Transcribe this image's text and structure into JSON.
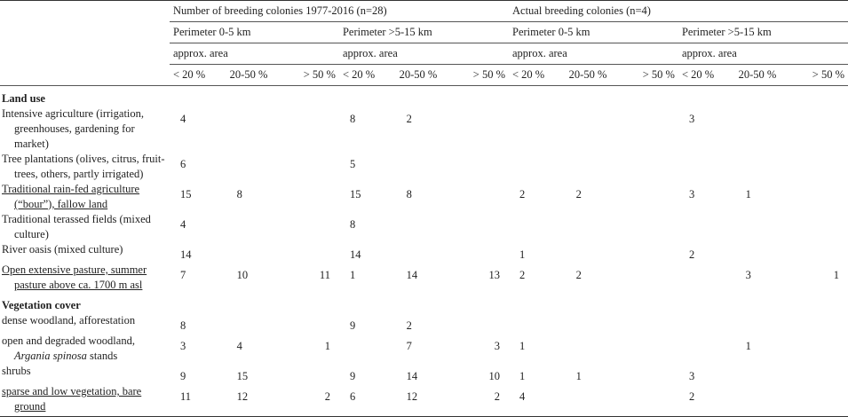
{
  "header": {
    "groups": [
      "Number of breeding colonies 1977-2016 (n=28)",
      "Actual breeding colonies (n=4)"
    ],
    "perimeters": [
      "Perimeter 0-5 km",
      "Perimeter >5-15 km",
      "Perimeter 0-5 km",
      "Perimeter >5-15 km"
    ],
    "area": [
      "approx. area",
      "approx. area",
      "approx. area",
      "approx. area"
    ],
    "subcols": [
      "< 20 %",
      "20-50 %",
      "> 50 %",
      "< 20 %",
      "20-50 %",
      "> 50 %",
      "< 20 %",
      "20-50 %",
      "> 50 %",
      "< 20 %",
      "20-50 %",
      "> 50 %"
    ]
  },
  "sections": [
    {
      "title": "Land use",
      "rows": [
        {
          "label": "Intensive agriculture (irrigation, greenhouses, gardening for market)",
          "cells": [
            4,
            null,
            null,
            8,
            2,
            null,
            null,
            null,
            null,
            3,
            null,
            null
          ]
        },
        {
          "label": "Tree plantations (olives, citrus, fruit-trees, others, partly irrigated)",
          "cells": [
            6,
            null,
            null,
            5,
            null,
            null,
            null,
            null,
            null,
            null,
            null,
            null
          ]
        },
        {
          "label": "Traditional rain-fed agriculture (“bour”), fallow land",
          "underlined": true,
          "cells": [
            15,
            8,
            null,
            15,
            8,
            null,
            2,
            2,
            null,
            3,
            1,
            null
          ]
        },
        {
          "label": "Traditional terassed fields (mixed culture)",
          "cells": [
            4,
            null,
            null,
            8,
            null,
            null,
            null,
            null,
            null,
            null,
            null,
            null
          ]
        },
        {
          "label": "River oasis (mixed culture)",
          "cells": [
            14,
            null,
            null,
            14,
            null,
            null,
            1,
            null,
            null,
            2,
            null,
            null
          ]
        },
        {
          "label": "Open extensive pasture, summer pasture above ca. 1700 m asl",
          "underlined": true,
          "cells": [
            7,
            10,
            11,
            1,
            14,
            13,
            2,
            2,
            null,
            null,
            3,
            1
          ]
        }
      ]
    },
    {
      "title": "Vegetation cover",
      "rows": [
        {
          "label": "dense woodland, afforestation",
          "cells": [
            8,
            null,
            null,
            9,
            2,
            null,
            null,
            null,
            null,
            null,
            null,
            null
          ]
        },
        {
          "label": "open and degraded woodland,",
          "label_italic": "Argania spinosa",
          "label_end": "stands",
          "cells": [
            3,
            4,
            1,
            null,
            7,
            3,
            1,
            null,
            null,
            null,
            1,
            null
          ]
        },
        {
          "label": "shrubs",
          "cells": [
            9,
            15,
            null,
            9,
            14,
            10,
            1,
            1,
            null,
            3,
            null,
            null
          ]
        },
        {
          "label": "sparse and low vegetation, bare ground",
          "underlined": true,
          "cells": [
            11,
            12,
            2,
            6,
            12,
            2,
            4,
            null,
            null,
            2,
            null,
            null
          ]
        }
      ]
    }
  ]
}
